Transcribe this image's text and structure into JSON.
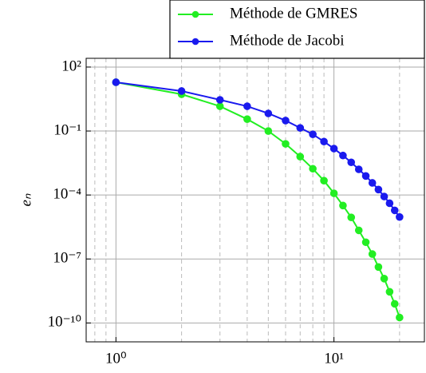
{
  "chart_data": {
    "type": "line",
    "y_label": "eₙ",
    "xscale": "log",
    "yscale": "log",
    "x": [
      1,
      2,
      3,
      4,
      5,
      6,
      7,
      8,
      9,
      10,
      11,
      12,
      13,
      14,
      15,
      16,
      17,
      18,
      19,
      20
    ],
    "series": [
      {
        "name": "Méthode de GMRES",
        "color": "#22ee22",
        "values": [
          19.4,
          5.3,
          1.45,
          0.36,
          0.1,
          0.025,
          0.0063,
          0.0017,
          0.00047,
          0.00012,
          3.2e-05,
          8.9e-06,
          2.2e-06,
          6.1e-07,
          1.7e-07,
          4.2e-08,
          1.2e-08,
          2.9e-09,
          7.9e-10,
          1.8e-10
        ]
      },
      {
        "name": "Méthode de Jacobi",
        "color": "#1a1aee",
        "values": [
          19.4,
          7.5,
          2.9,
          1.45,
          0.67,
          0.31,
          0.14,
          0.07,
          0.032,
          0.015,
          0.0071,
          0.0034,
          0.0016,
          0.00078,
          0.00037,
          0.00018,
          8.5e-05,
          4.1e-05,
          1.9e-05,
          9.3e-06
        ]
      }
    ],
    "xlim": [
      0.73,
      26
    ],
    "ylim": [
      1.3e-11,
      257
    ],
    "xticks": [
      {
        "value": 1,
        "label": "10⁰"
      },
      {
        "value": 10,
        "label": "10¹"
      }
    ],
    "yticks": [
      {
        "value": 100,
        "label": "10²"
      },
      {
        "value": 0.1,
        "label": "10⁻¹"
      },
      {
        "value": 0.0001,
        "label": "10⁻⁴"
      },
      {
        "value": 1e-07,
        "label": "10⁻⁷"
      },
      {
        "value": 1e-10,
        "label": "10⁻¹⁰"
      }
    ],
    "x_minor_grid": [
      0.8,
      0.9,
      2,
      3,
      4,
      5,
      6,
      7,
      8,
      9,
      20
    ],
    "grid": true,
    "legend": "top-right"
  }
}
